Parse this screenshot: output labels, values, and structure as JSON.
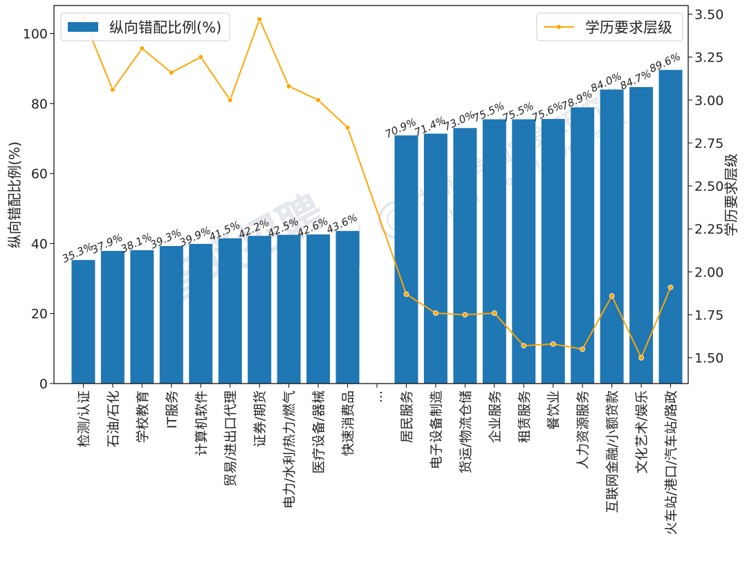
{
  "chart_data": {
    "type": "bar+line",
    "bar_series_name": "纵向错配比例(%)",
    "line_series_name": "学历要求层级",
    "ylabel_left": "纵向错配比例(%)",
    "ylabel_right": "学历要求层级",
    "ylim_left": [
      0,
      108
    ],
    "ylim_right": [
      1.35,
      3.55
    ],
    "yticks_left": [
      0,
      20,
      40,
      60,
      80,
      100
    ],
    "yticks_right": [
      1.5,
      1.75,
      2.0,
      2.25,
      2.5,
      2.75,
      3.0,
      3.25,
      3.5
    ],
    "yticks_right_labels": [
      "1.50",
      "1.75",
      "2.00",
      "2.25",
      "2.50",
      "2.75",
      "3.00",
      "3.25",
      "3.50"
    ],
    "gap_label": "...",
    "legend_left": "top-left",
    "legend_right": "top-right",
    "categories": [
      "检测/认证",
      "石油/石化",
      "学校教育",
      "IT服务",
      "计算机软件",
      "贸易/进出口代理",
      "证券/期货",
      "电力/水利/热力/燃气",
      "医疗设备/器械",
      "快速消费品",
      "居民服务",
      "电子设备制造",
      "货运/物流仓储",
      "企业服务",
      "租赁服务",
      "餐饮业",
      "人力资源服务",
      "互联网金融/小额贷款",
      "文化艺术/娱乐",
      "火车站/港口/汽车站/路政"
    ],
    "bar_values": [
      35.3,
      37.9,
      38.1,
      39.3,
      39.9,
      41.5,
      42.2,
      42.5,
      42.6,
      43.6,
      70.9,
      71.4,
      73.0,
      75.5,
      75.5,
      75.6,
      78.9,
      84.0,
      84.7,
      89.6
    ],
    "bar_labels": [
      "35.3%",
      "37.9%",
      "38.1%",
      "39.3%",
      "39.9%",
      "41.5%",
      "42.2%",
      "42.5%",
      "42.6%",
      "43.6%",
      "70.9%",
      "71.4%",
      "73.0%",
      "75.5%",
      "75.5%",
      "75.6%",
      "78.9%",
      "84.0%",
      "84.7%",
      "89.6%"
    ],
    "line_values": [
      3.48,
      3.06,
      3.3,
      3.16,
      3.25,
      3.0,
      3.47,
      3.08,
      3.0,
      2.84,
      1.87,
      1.76,
      1.75,
      1.76,
      1.57,
      1.58,
      1.55,
      1.86,
      1.5,
      1.91
    ],
    "colors": {
      "bar": "#1f77b4",
      "line": "#ffa500"
    }
  },
  "watermark": {
    "zhaopin": "智联招聘",
    "pku_cn": "北京大学国家发展研究院",
    "pku_en": "National School of Development"
  }
}
